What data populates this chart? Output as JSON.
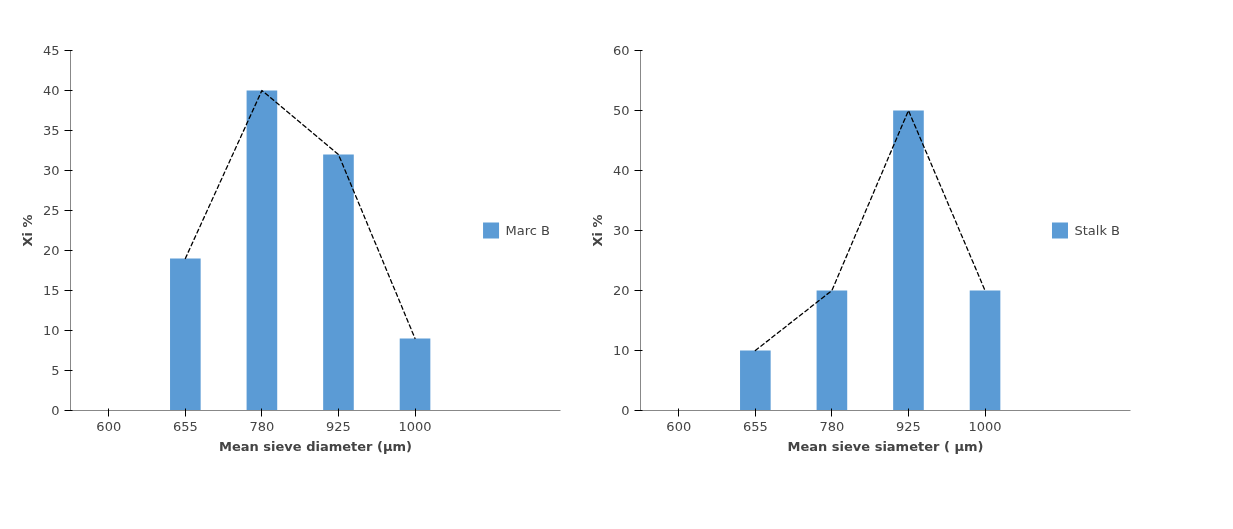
{
  "chart_data": [
    {
      "type": "bar",
      "categories": [
        "600",
        "655",
        "780",
        "925",
        "1000"
      ],
      "xlabel": "Mean sieve diameter (µm)",
      "ylabel": "Xi %",
      "ylim": [
        0,
        45
      ],
      "yticks": [
        0,
        5,
        10,
        15,
        20,
        25,
        30,
        35,
        40,
        45
      ],
      "grid": false,
      "legend": "right",
      "series": [
        {
          "name": "Marc B",
          "color": "#5b9bd5",
          "values": [
            null,
            19,
            40,
            32,
            9
          ]
        },
        {
          "type": "line",
          "color": "#000000",
          "line_style": "dashed",
          "values": [
            null,
            19,
            40,
            32,
            9
          ]
        }
      ]
    },
    {
      "type": "bar",
      "categories": [
        "600",
        "655",
        "780",
        "925",
        "1000"
      ],
      "xlabel": "Mean sieve siameter ( µm)",
      "ylabel": "Xi %",
      "ylim": [
        0,
        60
      ],
      "yticks": [
        0,
        10,
        20,
        30,
        40,
        50,
        60
      ],
      "grid": false,
      "legend": "right",
      "series": [
        {
          "name": "Stalk B",
          "color": "#5b9bd5",
          "values": [
            null,
            10,
            20,
            50,
            20
          ]
        },
        {
          "type": "line",
          "color": "#000000",
          "line_style": "dashed",
          "values": [
            null,
            10,
            20,
            50,
            20
          ]
        }
      ]
    }
  ]
}
